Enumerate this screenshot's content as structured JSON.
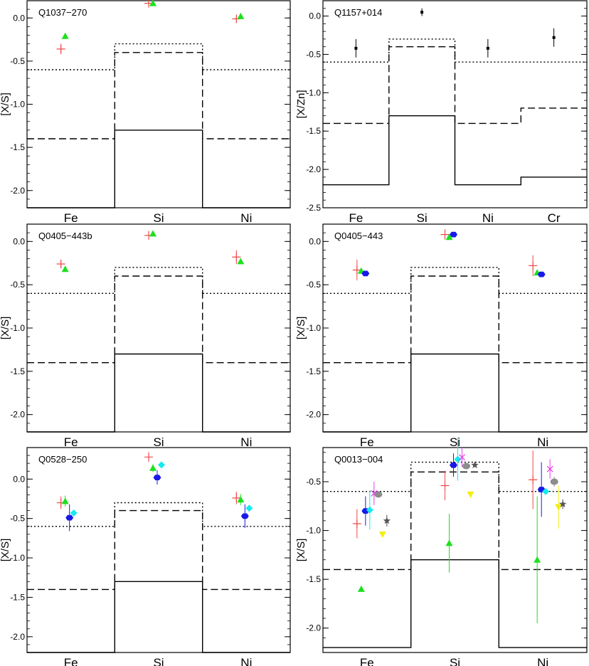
{
  "colors": {
    "red_plus": "#f04a4a",
    "green_triangle": "#1ee01e",
    "blue_hexagon": "#1818e8",
    "cyan_diamond": "#14eaf0",
    "magenta_cross": "#e83ae8",
    "gray_circle": "#8c8c8c",
    "yellow_triangle_down": "#f2ee10",
    "dark_star": "#555555",
    "black_square": "#000000"
  },
  "chart_data": [
    {
      "type": "scatter",
      "title": "Q1037−270",
      "ylabel": "[X/S]",
      "ylim": [
        -2.2,
        0.2
      ],
      "yticks": [
        0.0,
        -0.5,
        -1.0,
        -1.5,
        -2.0
      ],
      "ytick_labels": [
        "0.0",
        "-0.5",
        "-1.0",
        "-1.5",
        "-2.0"
      ],
      "categories": [
        "Fe",
        "Si",
        "Ni"
      ],
      "model_lines": {
        "solid": [
          -2.2,
          -1.3,
          -2.2
        ],
        "dashed": [
          -1.4,
          -0.4,
          -1.4
        ],
        "dotted": [
          -0.6,
          -0.3,
          -0.6
        ]
      },
      "series": [
        {
          "marker": "plus",
          "color": "red_plus",
          "values": [
            -0.36,
            0.17,
            -0.01
          ],
          "errors": [
            0.06,
            0.02,
            0.04
          ]
        },
        {
          "marker": "triangle",
          "color": "green_triangle",
          "values": [
            -0.21,
            0.17,
            0.02
          ],
          "errors": [
            0.0,
            0.0,
            0.0
          ]
        }
      ]
    },
    {
      "type": "scatter",
      "title": "Q1157+014",
      "ylabel": "[X/Zn]",
      "ylim": [
        -2.5,
        0.2
      ],
      "yticks": [
        0.0,
        -0.5,
        -1.0,
        -1.5,
        -2.0,
        -2.5
      ],
      "ytick_labels": [
        "0.0",
        "-0.5",
        "-1.0",
        "-1.5",
        "-2.0",
        "-2.5"
      ],
      "categories": [
        "Fe",
        "Si",
        "Ni",
        "Cr"
      ],
      "model_lines": {
        "solid": [
          -2.2,
          -1.3,
          -2.2,
          -2.1
        ],
        "dashed": [
          -1.4,
          -0.4,
          -1.4,
          -1.2
        ],
        "dotted": [
          -0.6,
          -0.3,
          -0.6,
          -0.6
        ]
      },
      "series": [
        {
          "marker": "square",
          "color": "black_square",
          "values": [
            -0.42,
            0.05,
            -0.42,
            -0.28
          ],
          "errors": [
            0.12,
            0.05,
            0.12,
            0.12
          ]
        }
      ]
    },
    {
      "type": "scatter",
      "title": "Q0405−443b",
      "ylabel": "[X/S]",
      "ylim": [
        -2.2,
        0.2
      ],
      "yticks": [
        0.0,
        -0.5,
        -1.0,
        -1.5,
        -2.0
      ],
      "ytick_labels": [
        "0.0",
        "-0.5",
        "-1.0",
        "-1.5",
        "-2.0"
      ],
      "categories": [
        "Fe",
        "Si",
        "Ni"
      ],
      "model_lines": {
        "solid": [
          -2.2,
          -1.3,
          -2.2
        ],
        "dashed": [
          -1.4,
          -0.4,
          -1.4
        ],
        "dotted": [
          -0.6,
          -0.3,
          -0.6
        ]
      },
      "series": [
        {
          "marker": "plus",
          "color": "red_plus",
          "values": [
            -0.26,
            0.07,
            -0.18
          ],
          "errors": [
            0.05,
            0.03,
            0.08
          ]
        },
        {
          "marker": "triangle",
          "color": "green_triangle",
          "values": [
            -0.32,
            0.09,
            -0.23
          ],
          "errors": [
            0.0,
            0.0,
            0.0
          ]
        }
      ]
    },
    {
      "type": "scatter",
      "title": "Q0405−443",
      "ylabel": "[X/S]",
      "ylim": [
        -2.2,
        0.2
      ],
      "yticks": [
        0.0,
        -0.5,
        -1.0,
        -1.5,
        -2.0
      ],
      "ytick_labels": [
        "0.0",
        "-0.5",
        "-1.0",
        "-1.5",
        "-2.0"
      ],
      "categories": [
        "Fe",
        "Si",
        "Ni"
      ],
      "model_lines": {
        "solid": [
          -2.2,
          -1.3,
          -2.2
        ],
        "dashed": [
          -1.4,
          -0.4,
          -1.4
        ],
        "dotted": [
          -0.6,
          -0.3,
          -0.6
        ]
      },
      "series": [
        {
          "marker": "plus",
          "color": "red_plus",
          "values": [
            -0.33,
            0.08,
            -0.28
          ],
          "errors": [
            0.12,
            0.06,
            0.12
          ]
        },
        {
          "marker": "triangle",
          "color": "green_triangle",
          "values": [
            -0.34,
            0.05,
            -0.36
          ],
          "errors": [
            0.0,
            0.0,
            0.0
          ]
        },
        {
          "marker": "hexagon",
          "color": "blue_hexagon",
          "values": [
            -0.37,
            0.08,
            -0.38
          ],
          "errors": [
            0.02,
            0.02,
            0.02
          ]
        }
      ]
    },
    {
      "type": "scatter",
      "title": "Q0528−250",
      "ylabel": "[X/S]",
      "ylim": [
        -2.2,
        0.4
      ],
      "yticks": [
        0.0,
        -0.5,
        -1.0,
        -1.5,
        -2.0
      ],
      "ytick_labels": [
        "0.0",
        "-0.5",
        "-1.0",
        "-1.5",
        "-2.0"
      ],
      "categories": [
        "Fe",
        "Si",
        "Ni"
      ],
      "model_lines": {
        "solid": [
          -2.2,
          -1.3,
          -2.2
        ],
        "dashed": [
          -1.4,
          -0.4,
          -1.4
        ],
        "dotted": [
          -0.6,
          -0.3,
          -0.6
        ]
      },
      "series": [
        {
          "marker": "plus",
          "color": "red_plus",
          "values": [
            -0.3,
            0.28,
            -0.24
          ],
          "errors": [
            0.08,
            0.06,
            0.08
          ]
        },
        {
          "marker": "triangle",
          "color": "green_triangle",
          "values": [
            -0.28,
            0.14,
            -0.26
          ],
          "errors": [
            0.07,
            0.05,
            0.07
          ]
        },
        {
          "marker": "hexagon",
          "color": "blue_hexagon",
          "values": [
            -0.49,
            0.02,
            -0.47
          ],
          "errors": [
            0.17,
            0.09,
            0.15
          ]
        },
        {
          "marker": "diamond",
          "color": "cyan_diamond",
          "values": [
            -0.43,
            0.18,
            -0.37
          ],
          "errors": [
            0.0,
            0.0,
            0.0
          ]
        }
      ]
    },
    {
      "type": "scatter",
      "title": "Q0013−004",
      "ylabel": "[X/S]",
      "ylim": [
        -2.25,
        -0.15
      ],
      "yticks": [
        -0.5,
        -1.0,
        -1.5,
        -2.0
      ],
      "ytick_labels": [
        "-0.5",
        "-1.0",
        "-1.5",
        "-2.0"
      ],
      "categories": [
        "Fe",
        "Si",
        "Ni"
      ],
      "model_lines": {
        "solid": [
          -2.2,
          -1.3,
          -2.2
        ],
        "dashed": [
          -1.4,
          -0.4,
          -1.4
        ],
        "dotted": [
          -0.6,
          -0.3,
          -0.6
        ]
      },
      "series": [
        {
          "marker": "plus",
          "color": "red_plus",
          "values": [
            -0.93,
            -0.54,
            -0.48
          ],
          "errors": [
            0.15,
            0.15,
            0.3
          ]
        },
        {
          "marker": "triangle",
          "color": "green_triangle",
          "values": [
            -1.6,
            -1.13,
            -1.3
          ],
          "errors": [
            0.0,
            0.3,
            0.65
          ]
        },
        {
          "marker": "hexagon",
          "color": "blue_hexagon",
          "values": [
            -0.8,
            -0.33,
            -0.58
          ],
          "errors": [
            0.15,
            0.12,
            0.28
          ]
        },
        {
          "marker": "diamond",
          "color": "cyan_diamond",
          "values": [
            -0.79,
            -0.27,
            -0.6
          ],
          "errors": [
            0.2,
            0.22,
            0.0
          ]
        },
        {
          "marker": "cross",
          "color": "magenta_cross",
          "values": [
            -0.62,
            -0.25,
            -0.37
          ],
          "errors": [
            0.12,
            0.1,
            0.1
          ]
        },
        {
          "marker": "circle",
          "color": "gray_circle",
          "values": [
            -0.63,
            -0.34,
            -0.5
          ],
          "errors": [
            0.0,
            0.0,
            0.05
          ]
        },
        {
          "marker": "triangle-down",
          "color": "yellow_triangle_down",
          "values": [
            -1.04,
            -0.63,
            -0.76
          ],
          "errors": [
            0.0,
            0.0,
            0.22
          ]
        },
        {
          "marker": "star",
          "color": "dark_star",
          "values": [
            -0.9,
            -0.33,
            -0.73
          ],
          "errors": [
            0.06,
            0.0,
            0.05
          ]
        }
      ]
    }
  ]
}
